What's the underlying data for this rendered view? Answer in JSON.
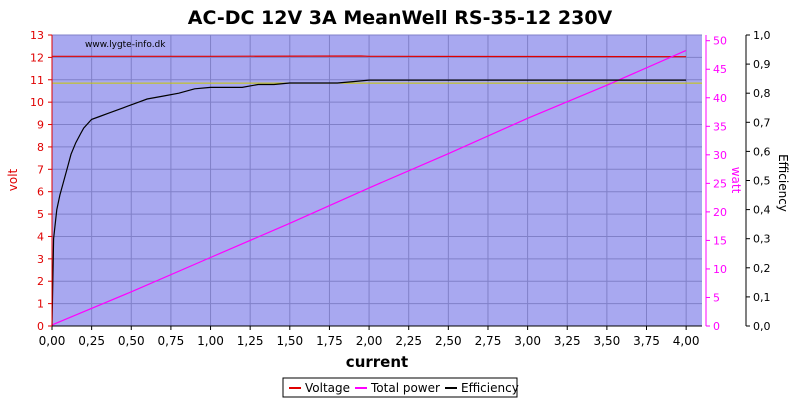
{
  "chart_data": {
    "type": "line",
    "title": "AC-DC 12V 3A MeanWell RS-35-12 230V",
    "watermark": "www.lygte-info.dk",
    "xlabel": "current",
    "y_left_label": "volt",
    "y_right1_label": "watt",
    "y_right2_label": "Efficiency",
    "xlim": [
      0,
      4.1
    ],
    "y_left_lim": [
      0,
      13
    ],
    "y_right1_lim": [
      0,
      51
    ],
    "y_right2_lim": [
      0,
      1.0
    ],
    "x_ticks": [
      "0,00",
      "0,25",
      "0,50",
      "0,75",
      "1,00",
      "1,25",
      "1,50",
      "1,75",
      "2,00",
      "2,25",
      "2,50",
      "2,75",
      "3,00",
      "3,25",
      "3,50",
      "3,75",
      "4,00"
    ],
    "y_left_ticks": [
      "0",
      "1",
      "2",
      "3",
      "4",
      "5",
      "6",
      "7",
      "8",
      "9",
      "10",
      "11",
      "12",
      "13"
    ],
    "y_right1_ticks": [
      "0",
      "5",
      "10",
      "15",
      "20",
      "25",
      "30",
      "35",
      "40",
      "45",
      "50"
    ],
    "y_right2_ticks": [
      "0,0",
      "0,1",
      "0,2",
      "0,3",
      "0,4",
      "0,5",
      "0,6",
      "0,7",
      "0,8",
      "0,9",
      "1,0"
    ],
    "reference_line": {
      "axis": "left",
      "value": 10.85,
      "color": "#c8c800"
    },
    "colors": {
      "plot_bg": "#a8a8f0",
      "grid": "#8080c8",
      "voltage": "#e00000",
      "power": "#ff00ff",
      "efficiency": "#000000",
      "left_axis": "#e00000",
      "right1_axis": "#ff00ff"
    },
    "series": [
      {
        "name": "Voltage",
        "axis": "left",
        "x": [
          0.0,
          1.0,
          1.95,
          2.0,
          3.0,
          4.0
        ],
        "y": [
          12.05,
          12.05,
          12.06,
          12.05,
          12.04,
          12.03
        ]
      },
      {
        "name": "Total power",
        "axis": "right1",
        "x": [
          0.0,
          0.5,
          1.0,
          1.5,
          2.0,
          2.5,
          3.0,
          3.5,
          4.0
        ],
        "y": [
          0.2,
          6.0,
          12.0,
          18.0,
          24.2,
          30.2,
          36.4,
          42.2,
          48.3
        ]
      },
      {
        "name": "Efficiency",
        "axis": "right2",
        "x": [
          0.0,
          0.01,
          0.03,
          0.05,
          0.07,
          0.1,
          0.12,
          0.15,
          0.18,
          0.2,
          0.25,
          0.3,
          0.35,
          0.4,
          0.45,
          0.5,
          0.55,
          0.6,
          0.7,
          0.8,
          0.9,
          1.0,
          1.1,
          1.2,
          1.3,
          1.4,
          1.5,
          1.6,
          1.7,
          1.8,
          1.9,
          2.0,
          2.1,
          2.25,
          2.5,
          2.75,
          3.0,
          3.25,
          3.5,
          3.75,
          4.0
        ],
        "y": [
          0.0,
          0.3,
          0.4,
          0.45,
          0.49,
          0.55,
          0.59,
          0.63,
          0.66,
          0.68,
          0.71,
          0.72,
          0.73,
          0.74,
          0.75,
          0.76,
          0.77,
          0.78,
          0.79,
          0.8,
          0.815,
          0.82,
          0.82,
          0.82,
          0.83,
          0.83,
          0.835,
          0.835,
          0.835,
          0.835,
          0.84,
          0.845,
          0.845,
          0.845,
          0.845,
          0.845,
          0.845,
          0.845,
          0.845,
          0.845,
          0.845
        ]
      }
    ],
    "legend": {
      "placement": "bottom-center",
      "entries": [
        "Voltage",
        "Total power",
        "Efficiency"
      ]
    }
  }
}
